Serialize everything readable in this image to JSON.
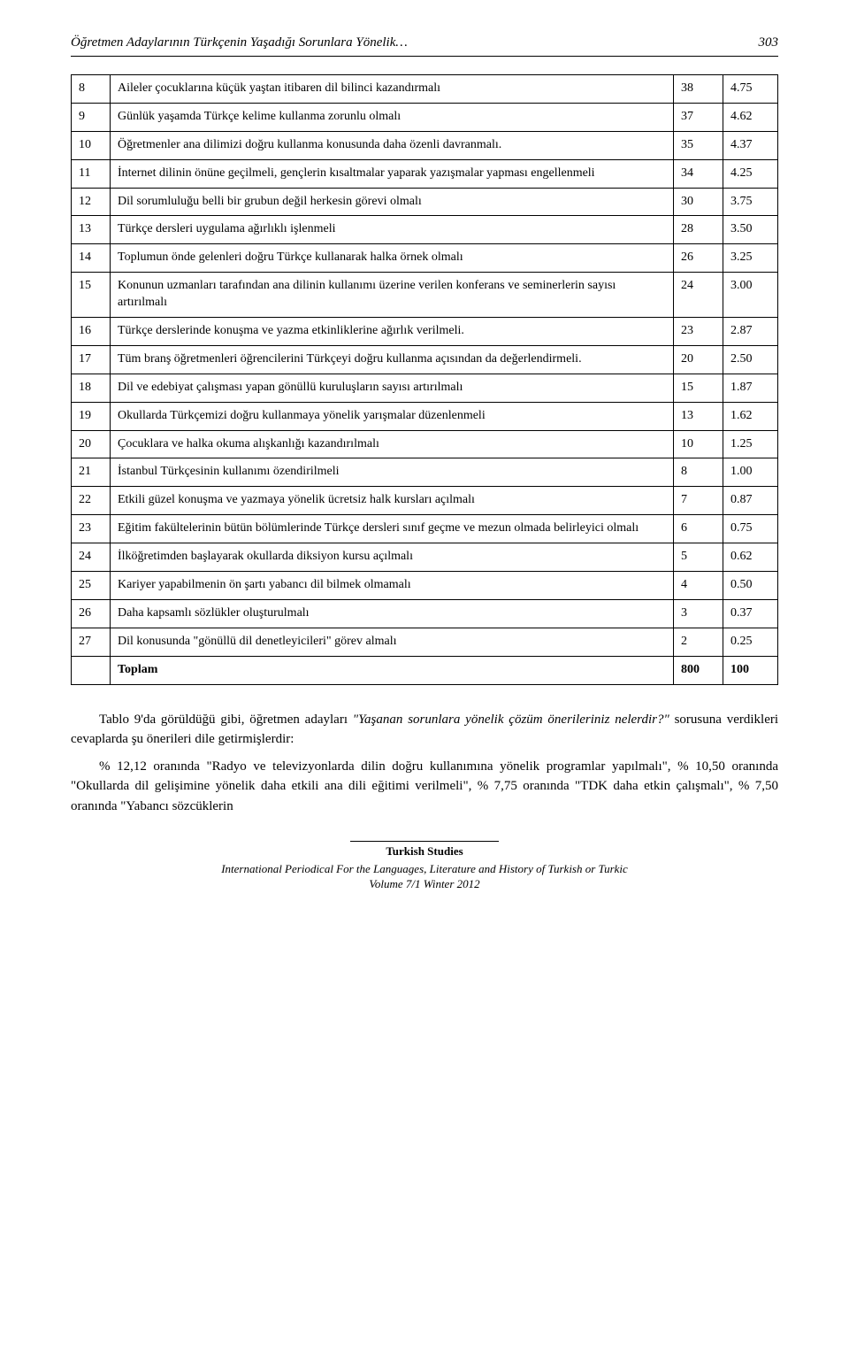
{
  "header": {
    "title": "Öğretmen Adaylarının Türkçenin Yaşadığı Sorunlara Yönelik…",
    "page_number": "303"
  },
  "table": {
    "rows": [
      {
        "n": "8",
        "item": "Aileler çocuklarına küçük yaştan itibaren dil bilinci kazandırmalı",
        "f": "38",
        "pct": "4.75"
      },
      {
        "n": "9",
        "item": "Günlük yaşamda Türkçe kelime kullanma zorunlu olmalı",
        "f": "37",
        "pct": "4.62"
      },
      {
        "n": "10",
        "item": "Öğretmenler ana dilimizi doğru kullanma konusunda daha özenli davranmalı.",
        "f": "35",
        "pct": "4.37"
      },
      {
        "n": "11",
        "item": "İnternet dilinin önüne geçilmeli, gençlerin kısaltmalar yaparak yazışmalar yapması engellenmeli",
        "f": "34",
        "pct": "4.25"
      },
      {
        "n": "12",
        "item": "Dil sorumluluğu belli bir grubun değil herkesin görevi olmalı",
        "f": "30",
        "pct": "3.75"
      },
      {
        "n": "13",
        "item": "Türkçe dersleri uygulama ağırlıklı işlenmeli",
        "f": "28",
        "pct": "3.50"
      },
      {
        "n": "14",
        "item": "Toplumun önde gelenleri doğru Türkçe kullanarak halka örnek olmalı",
        "f": "26",
        "pct": "3.25"
      },
      {
        "n": "15",
        "item": "Konunun uzmanları tarafından ana dilinin kullanımı üzerine verilen konferans ve seminerlerin sayısı artırılmalı",
        "f": "24",
        "pct": "3.00"
      },
      {
        "n": "16",
        "item": "Türkçe derslerinde konuşma ve yazma etkinliklerine ağırlık verilmeli.",
        "f": "23",
        "pct": "2.87"
      },
      {
        "n": "17",
        "item": "Tüm branş öğretmenleri öğrencilerini Türkçeyi doğru kullanma açısından da değerlendirmeli.",
        "f": "20",
        "pct": "2.50"
      },
      {
        "n": "18",
        "item": "Dil ve edebiyat çalışması yapan gönüllü kuruluşların sayısı artırılmalı",
        "f": "15",
        "pct": "1.87"
      },
      {
        "n": "19",
        "item": "Okullarda Türkçemizi doğru kullanmaya yönelik yarışmalar düzenlenmeli",
        "f": "13",
        "pct": "1.62"
      },
      {
        "n": "20",
        "item": "Çocuklara ve halka okuma alışkanlığı kazandırılmalı",
        "f": "10",
        "pct": "1.25"
      },
      {
        "n": "21",
        "item": "İstanbul Türkçesinin kullanımı özendirilmeli",
        "f": "8",
        "pct": "1.00"
      },
      {
        "n": "22",
        "item": "Etkili güzel konuşma ve yazmaya yönelik ücretsiz halk kursları açılmalı",
        "f": "7",
        "pct": "0.87"
      },
      {
        "n": "23",
        "item": "Eğitim fakültelerinin bütün bölümlerinde Türkçe dersleri sınıf geçme ve mezun olmada belirleyici olmalı",
        "f": "6",
        "pct": "0.75"
      },
      {
        "n": "24",
        "item": "İlköğretimden başlayarak okullarda diksiyon kursu açılmalı",
        "f": "5",
        "pct": "0.62"
      },
      {
        "n": "25",
        "item": "Kariyer yapabilmenin ön şartı yabancı dil bilmek olmamalı",
        "f": "4",
        "pct": "0.50"
      },
      {
        "n": "26",
        "item": "Daha kapsamlı sözlükler oluşturulmalı",
        "f": "3",
        "pct": "0.37"
      },
      {
        "n": "27",
        "item": "Dil konusunda \"gönüllü dil denetleyicileri\" görev almalı",
        "f": "2",
        "pct": "0.25"
      }
    ],
    "total": {
      "label": "Toplam",
      "f": "800",
      "pct": "100"
    }
  },
  "para1": {
    "lead": "Tablo 9'da görüldüğü gibi, öğretmen adayları ",
    "italic": "\"Yaşanan sorunlara yönelik çözüm önerileriniz nelerdir?\"",
    "tail": " sorusuna verdikleri cevaplarda şu önerileri dile getirmişlerdir:"
  },
  "para2": "% 12,12 oranında \"Radyo ve televizyonlarda dilin doğru kullanımına yönelik programlar yapılmalı\", % 10,50 oranında \"Okullarda dil gelişimine yönelik daha etkili ana dili eğitimi verilmeli\", % 7,75 oranında \"TDK daha etkin çalışmalı\", % 7,50 oranında \"Yabancı sözcüklerin",
  "footer": {
    "title": "Turkish Studies",
    "line1": "International Periodical For the Languages, Literature and History of Turkish or Turkic",
    "line2": "Volume 7/1 Winter 2012"
  }
}
